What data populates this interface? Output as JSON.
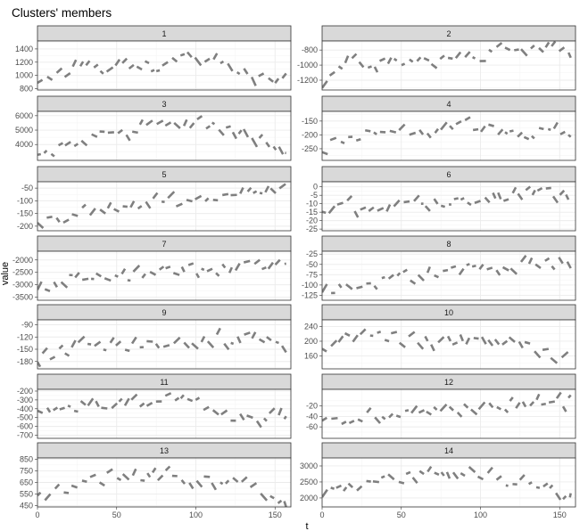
{
  "chart_data": {
    "type": "line",
    "title": "Clusters' members",
    "xlabel": "t",
    "ylabel": "value",
    "x_range": [
      0,
      160
    ],
    "x_ticks": [
      0,
      50,
      100,
      150
    ],
    "facet_by": "cluster",
    "line_color": "#7f7f7f",
    "grid": true,
    "panels": [
      {
        "label": "1",
        "y_range": [
          780,
          1520
        ],
        "y_ticks": [
          800,
          1000,
          1200,
          1400
        ],
        "anchors": [
          [
            0,
            920
          ],
          [
            15,
            1000
          ],
          [
            30,
            1180
          ],
          [
            45,
            1050
          ],
          [
            60,
            1190
          ],
          [
            75,
            1100
          ],
          [
            90,
            1300
          ],
          [
            100,
            1250
          ],
          [
            110,
            1200
          ],
          [
            120,
            1150
          ],
          [
            130,
            1050
          ],
          [
            140,
            930
          ],
          [
            150,
            880
          ],
          [
            157,
            1000
          ]
        ]
      },
      {
        "label": "2",
        "y_range": [
          -1330,
          -680
        ],
        "y_ticks": [
          -1200,
          -1000,
          -800
        ],
        "anchors": [
          [
            0,
            -1250
          ],
          [
            10,
            -1000
          ],
          [
            20,
            -950
          ],
          [
            40,
            -980
          ],
          [
            60,
            -950
          ],
          [
            80,
            -880
          ],
          [
            100,
            -880
          ],
          [
            110,
            -830
          ],
          [
            120,
            -820
          ],
          [
            140,
            -830
          ],
          [
            150,
            -770
          ],
          [
            157,
            -800
          ]
        ]
      },
      {
        "label": "3",
        "y_range": [
          2900,
          6300
        ],
        "y_ticks": [
          4000,
          5000,
          6000
        ],
        "anchors": [
          [
            0,
            3400
          ],
          [
            15,
            3900
          ],
          [
            30,
            4400
          ],
          [
            45,
            4700
          ],
          [
            60,
            4900
          ],
          [
            75,
            5300
          ],
          [
            90,
            5600
          ],
          [
            100,
            5400
          ],
          [
            115,
            5200
          ],
          [
            125,
            5000
          ],
          [
            140,
            4300
          ],
          [
            150,
            4000
          ],
          [
            157,
            3700
          ]
        ]
      },
      {
        "label": "4",
        "y_range": [
          -292,
          -115
        ],
        "y_ticks": [
          -250,
          -200,
          -150
        ],
        "anchors": [
          [
            0,
            -250
          ],
          [
            10,
            -210
          ],
          [
            25,
            -200
          ],
          [
            40,
            -185
          ],
          [
            55,
            -185
          ],
          [
            70,
            -175
          ],
          [
            85,
            -160
          ],
          [
            100,
            -170
          ],
          [
            115,
            -185
          ],
          [
            130,
            -190
          ],
          [
            145,
            -190
          ],
          [
            157,
            -180
          ]
        ]
      },
      {
        "label": "5",
        "y_range": [
          -218,
          -25
        ],
        "y_ticks": [
          -200,
          -150,
          -100,
          -50
        ],
        "anchors": [
          [
            0,
            -175
          ],
          [
            10,
            -185
          ],
          [
            25,
            -150
          ],
          [
            40,
            -125
          ],
          [
            60,
            -115
          ],
          [
            80,
            -110
          ],
          [
            100,
            -100
          ],
          [
            120,
            -85
          ],
          [
            140,
            -70
          ],
          [
            157,
            -60
          ]
        ]
      },
      {
        "label": "6",
        "y_range": [
          -26,
          3
        ],
        "y_ticks": [
          -25,
          -20,
          -15,
          -10,
          -5,
          0
        ],
        "anchors": [
          [
            0,
            -14
          ],
          [
            15,
            -11
          ],
          [
            30,
            -13
          ],
          [
            45,
            -11
          ],
          [
            60,
            -10
          ],
          [
            75,
            -9
          ],
          [
            90,
            -8
          ],
          [
            110,
            -6
          ],
          [
            130,
            -4
          ],
          [
            150,
            -3
          ],
          [
            157,
            -1
          ]
        ]
      },
      {
        "label": "7",
        "y_range": [
          -3620,
          -1650
        ],
        "y_ticks": [
          -3500,
          -3000,
          -2500,
          -2000
        ],
        "anchors": [
          [
            0,
            -3300
          ],
          [
            10,
            -2800
          ],
          [
            30,
            -2750
          ],
          [
            50,
            -2650
          ],
          [
            70,
            -2550
          ],
          [
            90,
            -2400
          ],
          [
            110,
            -2350
          ],
          [
            130,
            -2300
          ],
          [
            150,
            -2250
          ],
          [
            157,
            -2050
          ]
        ]
      },
      {
        "label": "8",
        "y_range": [
          -137,
          -18
        ],
        "y_ticks": [
          -125,
          -100,
          -75,
          -50,
          -25
        ],
        "anchors": [
          [
            0,
            -120
          ],
          [
            10,
            -105
          ],
          [
            25,
            -95
          ],
          [
            40,
            -85
          ],
          [
            60,
            -75
          ],
          [
            80,
            -65
          ],
          [
            100,
            -62
          ],
          [
            120,
            -55
          ],
          [
            140,
            -45
          ],
          [
            157,
            -40
          ]
        ]
      },
      {
        "label": "9",
        "y_range": [
          -198,
          -78
        ],
        "y_ticks": [
          -180,
          -150,
          -120,
          -90
        ],
        "anchors": [
          [
            0,
            -178
          ],
          [
            10,
            -160
          ],
          [
            25,
            -145
          ],
          [
            45,
            -140
          ],
          [
            65,
            -140
          ],
          [
            85,
            -130
          ],
          [
            100,
            -128
          ],
          [
            120,
            -125
          ],
          [
            140,
            -120
          ],
          [
            150,
            -125
          ],
          [
            157,
            -135
          ]
        ]
      },
      {
        "label": "10",
        "y_range": [
          125,
          258
        ],
        "y_ticks": [
          160,
          200,
          240
        ],
        "anchors": [
          [
            0,
            175
          ],
          [
            10,
            205
          ],
          [
            30,
            218
          ],
          [
            50,
            205
          ],
          [
            70,
            205
          ],
          [
            90,
            205
          ],
          [
            100,
            210
          ],
          [
            110,
            205
          ],
          [
            125,
            190
          ],
          [
            140,
            165
          ],
          [
            150,
            150
          ],
          [
            157,
            145
          ]
        ]
      },
      {
        "label": "11",
        "y_range": [
          -735,
          -180
        ],
        "y_ticks": [
          -700,
          -600,
          -500,
          -400,
          -300,
          -200
        ],
        "anchors": [
          [
            0,
            -400
          ],
          [
            20,
            -380
          ],
          [
            40,
            -350
          ],
          [
            60,
            -320
          ],
          [
            80,
            -300
          ],
          [
            95,
            -310
          ],
          [
            105,
            -390
          ],
          [
            115,
            -420
          ],
          [
            125,
            -500
          ],
          [
            140,
            -510
          ],
          [
            150,
            -480
          ],
          [
            157,
            -460
          ]
        ]
      },
      {
        "label": "12",
        "y_range": [
          -82,
          12
        ],
        "y_ticks": [
          -60,
          -40,
          -20
        ],
        "anchors": [
          [
            0,
            -45
          ],
          [
            10,
            -55
          ],
          [
            20,
            -45
          ],
          [
            40,
            -35
          ],
          [
            60,
            -30
          ],
          [
            80,
            -25
          ],
          [
            100,
            -22
          ],
          [
            120,
            -17
          ],
          [
            140,
            -12
          ],
          [
            157,
            -14
          ]
        ]
      },
      {
        "label": "13",
        "y_range": [
          440,
          860
        ],
        "y_ticks": [
          450,
          550,
          650,
          750,
          850
        ],
        "anchors": [
          [
            0,
            520
          ],
          [
            15,
            590
          ],
          [
            30,
            680
          ],
          [
            45,
            690
          ],
          [
            60,
            700
          ],
          [
            75,
            710
          ],
          [
            90,
            710
          ],
          [
            100,
            680
          ],
          [
            115,
            650
          ],
          [
            130,
            650
          ],
          [
            140,
            600
          ],
          [
            150,
            520
          ],
          [
            157,
            470
          ]
        ]
      },
      {
        "label": "14",
        "y_range": [
          1720,
          3250
        ],
        "y_ticks": [
          2000,
          2500,
          3000
        ],
        "anchors": [
          [
            0,
            2100
          ],
          [
            15,
            2300
          ],
          [
            30,
            2500
          ],
          [
            45,
            2650
          ],
          [
            60,
            2700
          ],
          [
            75,
            2800
          ],
          [
            90,
            2850
          ],
          [
            100,
            2750
          ],
          [
            110,
            2650
          ],
          [
            120,
            2450
          ],
          [
            135,
            2350
          ],
          [
            145,
            2200
          ],
          [
            157,
            1900
          ]
        ]
      }
    ]
  }
}
